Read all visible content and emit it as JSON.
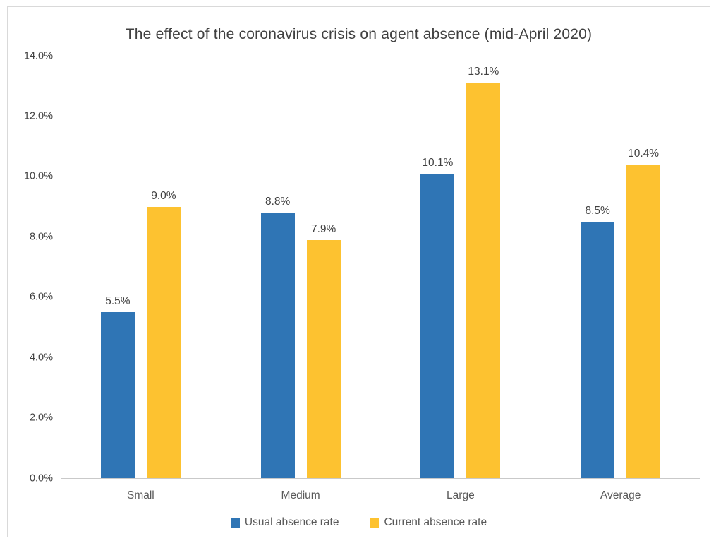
{
  "chart_data": {
    "type": "bar",
    "title": "The effect of the coronavirus crisis on agent absence (mid-April 2020)",
    "categories": [
      "Small",
      "Medium",
      "Large",
      "Average"
    ],
    "series": [
      {
        "name": "Usual absence rate",
        "color": "#2F75B5",
        "values": [
          5.5,
          8.8,
          10.1,
          8.5
        ],
        "labels": [
          "5.5%",
          "8.8%",
          "10.1%",
          "8.5%"
        ]
      },
      {
        "name": "Current absence rate",
        "color": "#FDC230",
        "values": [
          9.0,
          7.9,
          13.1,
          10.4
        ],
        "labels": [
          "9.0%",
          "7.9%",
          "13.1%",
          "10.4%"
        ]
      }
    ],
    "xlabel": "",
    "ylabel": "",
    "ylim": [
      0,
      14
    ],
    "ytick_step": 2,
    "yticks": [
      "0.0%",
      "2.0%",
      "4.0%",
      "6.0%",
      "8.0%",
      "10.0%",
      "12.0%",
      "14.0%"
    ],
    "grid": false,
    "legend_position": "bottom",
    "colors": {
      "title_text": "#404040",
      "tick_text": "#404040",
      "category_text": "#595959",
      "legend_text": "#595959",
      "axis_line": "#c9c9c9",
      "frame_border": "#d9d9d9",
      "background": "#ffffff"
    }
  }
}
